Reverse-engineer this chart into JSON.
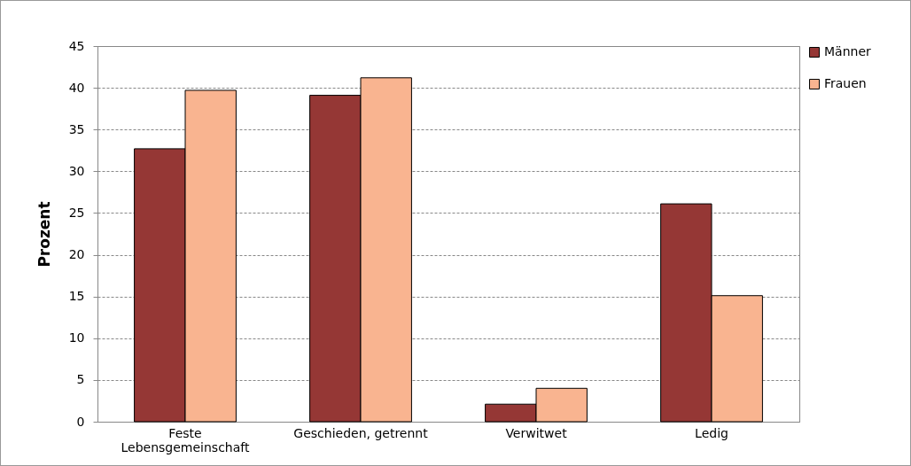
{
  "chart_data": {
    "type": "bar",
    "ylabel": "Prozent",
    "categories": [
      "Feste Lebensgemeinschaft",
      "Geschieden, getrennt",
      "Verwitwet",
      "Ledig"
    ],
    "series": [
      {
        "name": "Männer",
        "color": "#953735",
        "values": [
          32.7,
          39.1,
          2.1,
          26.1
        ]
      },
      {
        "name": "Frauen",
        "color": "#f9b490",
        "values": [
          39.7,
          41.2,
          4.0,
          15.1
        ]
      }
    ],
    "ylim": [
      0,
      45
    ],
    "yticks": [
      0,
      5,
      10,
      15,
      20,
      25,
      30,
      35,
      40,
      45
    ],
    "grid": "y",
    "legend": "right"
  }
}
